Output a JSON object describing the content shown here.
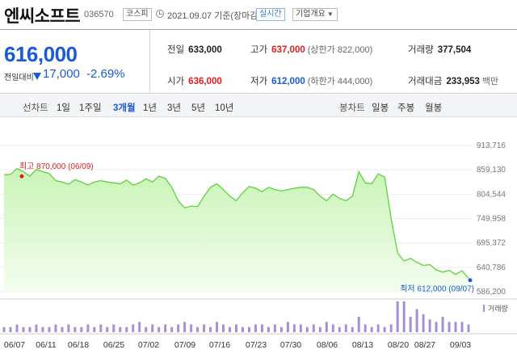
{
  "header": {
    "stock_name": "엔씨소프트",
    "stock_code": "036570",
    "market_badge": "코스피",
    "date_text": "2021.09.07 기준(장마감)",
    "live_badge": "실시간",
    "company_info_button": "기업개요"
  },
  "price": {
    "current": "616,000",
    "change_label": "전일대비",
    "change_amount": "17,000",
    "change_pct": "-2.69%"
  },
  "stats": {
    "prev_close_label": "전일",
    "prev_close": "633,000",
    "high_label": "고가",
    "high": "637,000",
    "upper_limit": "(상한가 822,000)",
    "volume_label": "거래량",
    "volume": "377,504",
    "open_label": "시가",
    "open": "636,000",
    "low_label": "저가",
    "low": "612,000",
    "lower_limit": "(하한가 444,000)",
    "amount_label": "거래대금",
    "amount": "233,953",
    "amount_unit": "백만"
  },
  "tabs": {
    "line_chart_label": "선차트",
    "periods": [
      "1일",
      "1주일",
      "3개월",
      "1년",
      "3년",
      "5년",
      "10년"
    ],
    "selected_period": "3개월",
    "candle_label": "봉차트",
    "candle_periods": [
      "일봉",
      "주봉",
      "월봉"
    ]
  },
  "colors": {
    "price_down": "#1a5ad6",
    "price_up": "#e01e1e",
    "line": "#5ed13c",
    "volume_bar": "#a98fd6"
  },
  "chart_data": {
    "type": "area",
    "y_ticks": [
      "913,716",
      "859,130",
      "804,544",
      "749,958",
      "695,372",
      "640,786",
      "586,200"
    ],
    "ylim": [
      586200,
      913716
    ],
    "x_ticks": [
      "06/07",
      "06/11",
      "06/18",
      "06/25",
      "07/02",
      "07/09",
      "07/16",
      "07/23",
      "07/30",
      "08/06",
      "08/13",
      "08/20",
      "08/27",
      "09/03"
    ],
    "values": [
      848000,
      849000,
      862000,
      855000,
      845000,
      860000,
      855000,
      851000,
      835000,
      832000,
      827000,
      837000,
      832000,
      825000,
      832000,
      835000,
      832000,
      830000,
      828000,
      836000,
      825000,
      830000,
      839000,
      832000,
      845000,
      840000,
      820000,
      790000,
      774000,
      778000,
      777000,
      800000,
      820000,
      828000,
      815000,
      800000,
      790000,
      808000,
      822000,
      818000,
      810000,
      820000,
      815000,
      812000,
      815000,
      818000,
      820000,
      820000,
      815000,
      800000,
      790000,
      805000,
      795000,
      790000,
      800000,
      855000,
      830000,
      828000,
      850000,
      843000,
      750000,
      673000,
      655000,
      661000,
      652000,
      645000,
      647000,
      635000,
      630000,
      634000,
      625000,
      633000,
      616000
    ],
    "high_marker": {
      "label": "최고",
      "value": "870,000",
      "date": "(06/09)"
    },
    "low_marker": {
      "label": "최저",
      "value": "612,000",
      "date": "(09/07)"
    },
    "volume_legend": "거래량",
    "volume": [
      2,
      2,
      3,
      2,
      2,
      3,
      2,
      2,
      3,
      2,
      3,
      2,
      2,
      3,
      2,
      3,
      2,
      3,
      2,
      2,
      3,
      4,
      2,
      3,
      2,
      3,
      2,
      3,
      4,
      3,
      2,
      3,
      2,
      4,
      3,
      2,
      3,
      2,
      2,
      3,
      3,
      2,
      3,
      2,
      4,
      3,
      3,
      2,
      3,
      2,
      4,
      3,
      2,
      3,
      2,
      6,
      3,
      2,
      3,
      2,
      3,
      12,
      12,
      6,
      9,
      7,
      5,
      4,
      6,
      4,
      4,
      4,
      3
    ]
  }
}
